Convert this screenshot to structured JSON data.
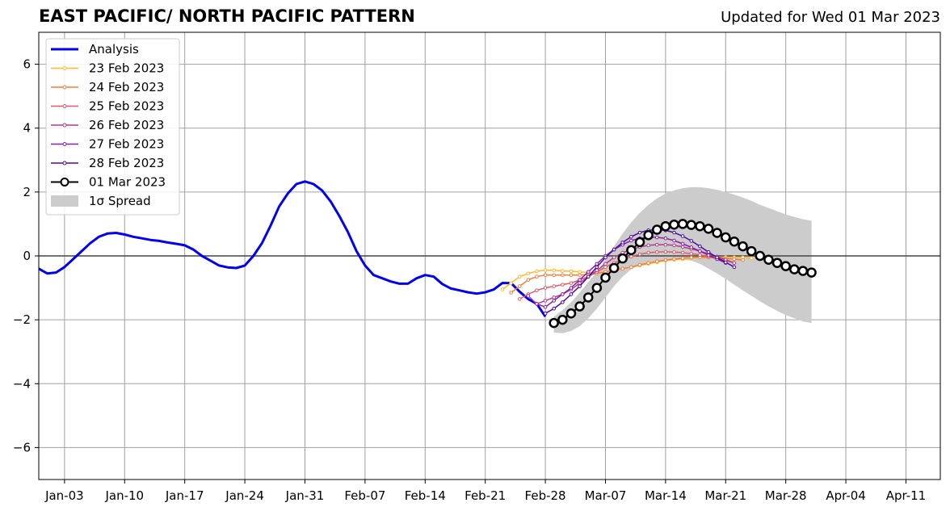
{
  "chart_data": {
    "type": "line",
    "title": "EAST PACIFIC/ NORTH PACIFIC PATTERN",
    "subtitle": "Updated for Wed 01 Mar 2023",
    "xlabel": "",
    "ylabel": "",
    "xlim": [
      "2022-12-31",
      "2023-04-15"
    ],
    "ylim": [
      -7,
      7
    ],
    "x_ticks": [
      "Jan-03",
      "Jan-10",
      "Jan-17",
      "Jan-24",
      "Jan-31",
      "Feb-07",
      "Feb-14",
      "Feb-21",
      "Feb-28",
      "Mar-07",
      "Mar-14",
      "Mar-21",
      "Mar-28",
      "Apr-04",
      "Apr-11"
    ],
    "x_tick_dates": [
      "2023-01-03",
      "2023-01-10",
      "2023-01-17",
      "2023-01-24",
      "2023-01-31",
      "2023-02-07",
      "2023-02-14",
      "2023-02-21",
      "2023-02-28",
      "2023-03-07",
      "2023-03-14",
      "2023-03-21",
      "2023-03-28",
      "2023-04-04",
      "2023-04-11"
    ],
    "y_ticks": [
      6,
      4,
      2,
      0,
      -2,
      -4,
      -6
    ],
    "y_tick_labels": [
      "6",
      "4",
      "2",
      "0",
      "−2",
      "−4",
      "−6"
    ],
    "grid": true,
    "zero_line": true,
    "legend_position": "top-left",
    "analysis": {
      "name": "Analysis",
      "color": "#0000ee",
      "start": "2022-12-31",
      "values": [
        -0.4,
        -0.55,
        -0.52,
        -0.35,
        -0.1,
        0.15,
        0.4,
        0.6,
        0.7,
        0.72,
        0.67,
        0.6,
        0.55,
        0.5,
        0.47,
        0.42,
        0.38,
        0.33,
        0.2,
        0.0,
        -0.15,
        -0.3,
        -0.36,
        -0.38,
        -0.3,
        0.0,
        0.4,
        0.95,
        1.55,
        1.95,
        2.25,
        2.33,
        2.25,
        2.05,
        1.7,
        1.25,
        0.75,
        0.15,
        -0.3,
        -0.6,
        -0.7,
        -0.8,
        -0.87,
        -0.87,
        -0.7,
        -0.6,
        -0.65,
        -0.88,
        -1.02,
        -1.08,
        -1.14,
        -1.18,
        -1.14,
        -1.05,
        -0.85,
        -0.85,
        -1.12,
        -1.35,
        -1.5,
        -1.9
      ]
    },
    "series": [
      {
        "name": "23 Feb 2023",
        "color": "#ffb833",
        "start": "2023-02-23",
        "values": [
          -1.05,
          -0.85,
          -0.65,
          -0.55,
          -0.48,
          -0.45,
          -0.45,
          -0.47,
          -0.48,
          -0.5,
          -0.52,
          -0.52,
          -0.5,
          -0.45,
          -0.4,
          -0.35,
          -0.3,
          -0.25,
          -0.2,
          -0.15,
          -0.12,
          -0.1,
          -0.07,
          -0.05,
          -0.05,
          -0.04,
          -0.04,
          -0.05,
          -0.05,
          -0.07
        ]
      },
      {
        "name": "24 Feb 2023",
        "color": "#f07f3d",
        "start": "2023-02-24",
        "values": [
          -1.15,
          -0.95,
          -0.75,
          -0.65,
          -0.6,
          -0.6,
          -0.6,
          -0.6,
          -0.6,
          -0.58,
          -0.55,
          -0.5,
          -0.45,
          -0.4,
          -0.35,
          -0.28,
          -0.22,
          -0.17,
          -0.13,
          -0.1,
          -0.07,
          -0.05,
          -0.04,
          -0.05,
          -0.06,
          -0.08,
          -0.1,
          -0.13
        ]
      },
      {
        "name": "25 Feb 2023",
        "color": "#d95d6a",
        "start": "2023-02-25",
        "values": [
          -1.35,
          -1.2,
          -1.08,
          -1.0,
          -0.95,
          -0.9,
          -0.85,
          -0.75,
          -0.65,
          -0.5,
          -0.35,
          -0.22,
          -0.12,
          -0.02,
          0.05,
          0.1,
          0.12,
          0.13,
          0.12,
          0.1,
          0.07,
          0.03,
          -0.02,
          -0.08,
          -0.15,
          -0.22
        ]
      },
      {
        "name": "26 Feb 2023",
        "color": "#b33b8c",
        "start": "2023-02-26",
        "values": [
          -1.25,
          -1.5,
          -1.4,
          -1.3,
          -1.2,
          -1.05,
          -0.85,
          -0.65,
          -0.45,
          -0.25,
          -0.05,
          0.1,
          0.2,
          0.28,
          0.33,
          0.35,
          0.35,
          0.33,
          0.28,
          0.22,
          0.15,
          0.07,
          -0.02,
          -0.12,
          -0.22
        ]
      },
      {
        "name": "27 Feb 2023",
        "color": "#8c1da8",
        "start": "2023-02-27",
        "values": [
          -1.5,
          -1.6,
          -1.4,
          -1.2,
          -1.0,
          -0.75,
          -0.5,
          -0.25,
          0.0,
          0.2,
          0.35,
          0.48,
          0.55,
          0.58,
          0.58,
          0.55,
          0.48,
          0.38,
          0.27,
          0.15,
          0.02,
          -0.1,
          -0.22
        ]
      },
      {
        "name": "28 Feb 2023",
        "color": "#4a0a9e",
        "start": "2023-02-28",
        "values": [
          -1.8,
          -1.65,
          -1.45,
          -1.2,
          -0.95,
          -0.65,
          -0.35,
          -0.05,
          0.2,
          0.42,
          0.6,
          0.73,
          0.8,
          0.82,
          0.8,
          0.73,
          0.62,
          0.47,
          0.3,
          0.12,
          -0.05,
          -0.2,
          -0.35
        ]
      },
      {
        "name": "01 Mar 2023",
        "color": "#000000",
        "start": "2023-03-01",
        "values": [
          -2.1,
          -2.0,
          -1.8,
          -1.58,
          -1.3,
          -1.0,
          -0.68,
          -0.38,
          -0.08,
          0.18,
          0.43,
          0.65,
          0.82,
          0.93,
          0.98,
          1.0,
          0.97,
          0.93,
          0.85,
          0.72,
          0.58,
          0.45,
          0.3,
          0.15,
          0.0,
          -0.12,
          -0.22,
          -0.32,
          -0.42,
          -0.47,
          -0.52
        ]
      }
    ],
    "spread": {
      "name": "1σ Spread",
      "color": "#cccccc",
      "start": "2023-03-01",
      "upper": [
        -1.9,
        -1.7,
        -1.45,
        -1.15,
        -0.82,
        -0.5,
        -0.1,
        0.3,
        0.7,
        1.05,
        1.35,
        1.6,
        1.8,
        1.95,
        2.05,
        2.12,
        2.15,
        2.15,
        2.12,
        2.07,
        2.0,
        1.92,
        1.83,
        1.72,
        1.6,
        1.5,
        1.4,
        1.3,
        1.22,
        1.15,
        1.1
      ],
      "lower": [
        -2.4,
        -2.42,
        -2.35,
        -2.2,
        -1.95,
        -1.65,
        -1.3,
        -0.95,
        -0.65,
        -0.42,
        -0.28,
        -0.2,
        -0.15,
        -0.13,
        -0.12,
        -0.12,
        -0.15,
        -0.25,
        -0.4,
        -0.55,
        -0.72,
        -0.9,
        -1.08,
        -1.25,
        -1.42,
        -1.58,
        -1.72,
        -1.85,
        -1.95,
        -2.05,
        -2.1
      ]
    }
  }
}
